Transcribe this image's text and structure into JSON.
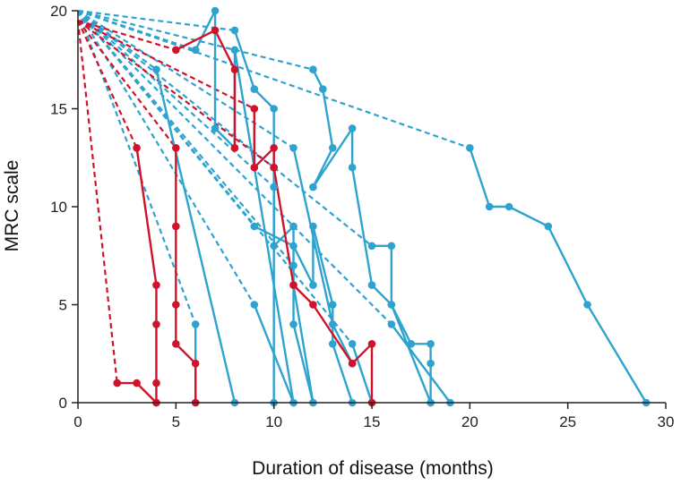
{
  "chart_data": {
    "type": "line",
    "title": "",
    "xlabel": "Duration of disease (months)",
    "ylabel": "MRC scale",
    "xlim": [
      0,
      30
    ],
    "ylim": [
      0,
      20
    ],
    "xticks": [
      "0",
      "5",
      "10",
      "15",
      "20",
      "25",
      "30"
    ],
    "yticks": [
      "0",
      "5",
      "10",
      "15",
      "20"
    ],
    "grid": false,
    "colors": {
      "blue": "#2EA3CF",
      "red": "#D0122B",
      "axis": "#222222"
    },
    "series": [
      {
        "name": "blue-1",
        "color": "blue",
        "onset": [
          0,
          20
        ],
        "points": [
          [
            6,
            18
          ],
          [
            7,
            20
          ],
          [
            7,
            14
          ],
          [
            8,
            13
          ],
          [
            8,
            18
          ],
          [
            11,
            0
          ]
        ]
      },
      {
        "name": "blue-2",
        "color": "blue",
        "onset": [
          0,
          20
        ],
        "points": [
          [
            8,
            19
          ],
          [
            9,
            16
          ],
          [
            10,
            15
          ],
          [
            10,
            0
          ]
        ]
      },
      {
        "name": "blue-3",
        "color": "blue",
        "onset": [
          0,
          20
        ],
        "points": [
          [
            12,
            17
          ],
          [
            12.5,
            16
          ],
          [
            13,
            13
          ],
          [
            12,
            11
          ],
          [
            14,
            14
          ],
          [
            14,
            12
          ],
          [
            15,
            6
          ],
          [
            16,
            5
          ],
          [
            18,
            0
          ]
        ]
      },
      {
        "name": "blue-4",
        "color": "blue",
        "onset": [
          0,
          20
        ],
        "points": [
          [
            20,
            13
          ],
          [
            21,
            10
          ],
          [
            22,
            10
          ],
          [
            24,
            9
          ],
          [
            26,
            5
          ],
          [
            29,
            0
          ]
        ]
      },
      {
        "name": "blue-5",
        "color": "blue",
        "onset": [
          0,
          20
        ],
        "points": [
          [
            4,
            17
          ],
          [
            8,
            0
          ]
        ]
      },
      {
        "name": "blue-6",
        "color": "blue",
        "onset": [
          0,
          20
        ],
        "points": [
          [
            6,
            4
          ],
          [
            6,
            0
          ]
        ]
      },
      {
        "name": "blue-7",
        "color": "blue",
        "onset": [
          0,
          20
        ],
        "points": [
          [
            9,
            5
          ],
          [
            11,
            0
          ]
        ]
      },
      {
        "name": "blue-8",
        "color": "blue",
        "onset": [
          0,
          20
        ],
        "points": [
          [
            10,
            11
          ],
          [
            10,
            8
          ],
          [
            11,
            9
          ],
          [
            11,
            4
          ],
          [
            12,
            0
          ]
        ]
      },
      {
        "name": "blue-9",
        "color": "blue",
        "onset": [
          0,
          20
        ],
        "points": [
          [
            9,
            9
          ],
          [
            11,
            8
          ],
          [
            12,
            6
          ],
          [
            12,
            9
          ],
          [
            13,
            5
          ],
          [
            13,
            3
          ],
          [
            14,
            0
          ]
        ]
      },
      {
        "name": "blue-10",
        "color": "blue",
        "onset": [
          0,
          20
        ],
        "points": [
          [
            11,
            13
          ],
          [
            13,
            4
          ],
          [
            14,
            2
          ]
        ]
      },
      {
        "name": "blue-11",
        "color": "blue",
        "onset": [
          0,
          20
        ],
        "points": [
          [
            11,
            7
          ],
          [
            11,
            6
          ],
          [
            12,
            0
          ]
        ]
      },
      {
        "name": "blue-12",
        "color": "blue",
        "onset": [
          0,
          20
        ],
        "points": [
          [
            15,
            8
          ],
          [
            16,
            8
          ],
          [
            16,
            5
          ],
          [
            17,
            3
          ],
          [
            18,
            3
          ],
          [
            18,
            2
          ],
          [
            18,
            0
          ]
        ]
      },
      {
        "name": "blue-13",
        "color": "blue",
        "onset": [
          0,
          20
        ],
        "points": [
          [
            14,
            3
          ],
          [
            15,
            0
          ]
        ]
      },
      {
        "name": "blue-14",
        "color": "blue",
        "onset": [
          0,
          20
        ],
        "points": [
          [
            16,
            4
          ],
          [
            19,
            0
          ]
        ]
      },
      {
        "name": "red-1",
        "color": "red",
        "onset": [
          0,
          19.5
        ],
        "points": [
          [
            2,
            1
          ],
          [
            3,
            1
          ],
          [
            4,
            0
          ]
        ]
      },
      {
        "name": "red-2",
        "color": "red",
        "onset": [
          0,
          19.5
        ],
        "points": [
          [
            3,
            13
          ],
          [
            4,
            6
          ],
          [
            4,
            4
          ],
          [
            4,
            1
          ],
          [
            4,
            0
          ]
        ]
      },
      {
        "name": "red-3",
        "color": "red",
        "onset": [
          0,
          19.5
        ],
        "points": [
          [
            5,
            13
          ],
          [
            5,
            9
          ],
          [
            5,
            5
          ],
          [
            5,
            3
          ],
          [
            6,
            2
          ],
          [
            6,
            0
          ]
        ]
      },
      {
        "name": "red-4",
        "color": "red",
        "onset": [
          0,
          19.5
        ],
        "points": [
          [
            5,
            18
          ],
          [
            7,
            19
          ],
          [
            8,
            17
          ],
          [
            8,
            13
          ]
        ]
      },
      {
        "name": "red-5",
        "color": "red",
        "onset": [
          0,
          19.5
        ],
        "points": [
          [
            9,
            15
          ],
          [
            9,
            12
          ],
          [
            10,
            13
          ],
          [
            10,
            12
          ]
        ]
      },
      {
        "name": "red-6",
        "color": "red",
        "onset": [
          0,
          19.5
        ],
        "points": [
          [
            10,
            12
          ],
          [
            11,
            6
          ],
          [
            12,
            5
          ],
          [
            14,
            2
          ],
          [
            15,
            3
          ],
          [
            15,
            0
          ]
        ]
      }
    ]
  }
}
